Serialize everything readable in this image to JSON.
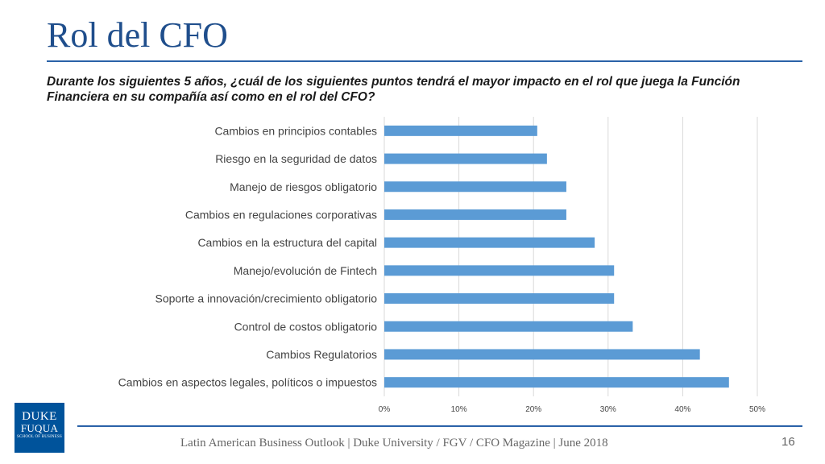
{
  "slide": {
    "title": "Rol del CFO",
    "question": "Durante los siguientes 5 años, ¿cuál de los siguientes puntos tendrá el mayor impacto en el rol que juega la Función Financiera en su compañía así como en el rol del CFO?",
    "footer": "Latin American Business Outlook | Duke University / FGV / CFO Magazine | June 2018",
    "page_number": "16",
    "logo": {
      "line1": "DUKE",
      "line2": "FUQUA",
      "line3": "SCHOOL OF BUSINESS"
    }
  },
  "colors": {
    "bar": "#5b9bd5",
    "title": "#1f4e8c",
    "rule": "#2a62a8",
    "logo_bg": "#00539b"
  },
  "chart_data": {
    "type": "bar",
    "orientation": "horizontal",
    "categories": [
      "Cambios en principios contables",
      "Riesgo en la seguridad de datos",
      "Manejo de riesgos obligatorio",
      "Cambios en regulaciones corporativas",
      "Cambios en la estructura del capital",
      "Manejo/evolución de Fintech",
      "Soporte a innovación/crecimiento obligatorio",
      "Control de costos obligatorio",
      "Cambios Regulatorios",
      "Cambios en aspectos legales, políticos o impuestos"
    ],
    "values": [
      20.5,
      21.8,
      24.4,
      24.4,
      28.2,
      30.8,
      30.8,
      33.3,
      42.3,
      46.2
    ],
    "xlim": [
      0,
      50
    ],
    "xticks": [
      "0%",
      "10%",
      "20%",
      "30%",
      "40%",
      "50%"
    ],
    "grid": true,
    "legend": "none"
  }
}
